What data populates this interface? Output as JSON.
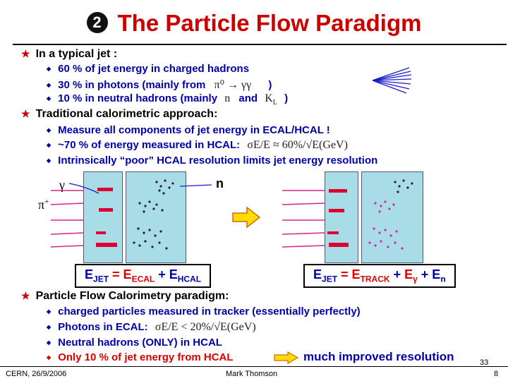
{
  "title": {
    "number": "2",
    "text": "The Particle Flow Paradigm"
  },
  "section1": {
    "heading": "In a typical jet :",
    "items": [
      "60 % of jet energy in charged hadrons",
      "30 % in photons  (mainly from",
      "10 % in neutral hadrons (mainly"
    ],
    "item2_math": "π⁰ → γγ",
    "item2_close": ")",
    "item3_math_n": "n",
    "item3_and": "and",
    "item3_math_k": "K",
    "item3_math_k_sub": "L",
    "item3_close": ")"
  },
  "section2": {
    "heading": "Traditional calorimetric approach:",
    "items": [
      "Measure all components of jet energy in ECAL/HCAL !",
      "~70 % of energy measured in HCAL:",
      "Intrinsically “poor” HCAL resolution limits jet energy resolution"
    ],
    "item2_math": "σE/E ≈ 60%/√E(GeV)"
  },
  "diagram": {
    "gamma_label": "γ",
    "n_label": "n",
    "pi_label": "π",
    "pi_sup": "+",
    "formula_left": {
      "e1": "E",
      "s1": "JET",
      "eq": " = ",
      "e2": "E",
      "s2": "ECAL",
      "plus": " + ",
      "e3": "E",
      "s3": "HCAL"
    },
    "formula_right": {
      "e1": "E",
      "s1": "JET",
      "eq": " = ",
      "e2": "E",
      "s2": "TRACK",
      "p1": " + ",
      "e3": "E",
      "s3": "γ",
      "p2": " + ",
      "e4": "E",
      "s4": "n"
    }
  },
  "section3": {
    "heading": "Particle Flow Calorimetry paradigm:",
    "items": [
      "charged particles measured in tracker  (essentially perfectly)",
      "Photons in ECAL:",
      "Neutral hadrons (ONLY) in HCAL",
      "Only 10 % of jet energy from HCAL"
    ],
    "item2_math": "σE/E < 20%/√E(GeV)",
    "conclusion": "much improved resolution"
  },
  "footer": {
    "left": "CERN, 26/9/2006",
    "center": "Mark Thomson",
    "right": "8",
    "slide_number": "33"
  },
  "colors": {
    "title": "#cc0000",
    "text_blue": "#0000aa",
    "accent_red": "#dd0000",
    "panel": "#a8dde8",
    "arrow": "#ffdd00"
  }
}
